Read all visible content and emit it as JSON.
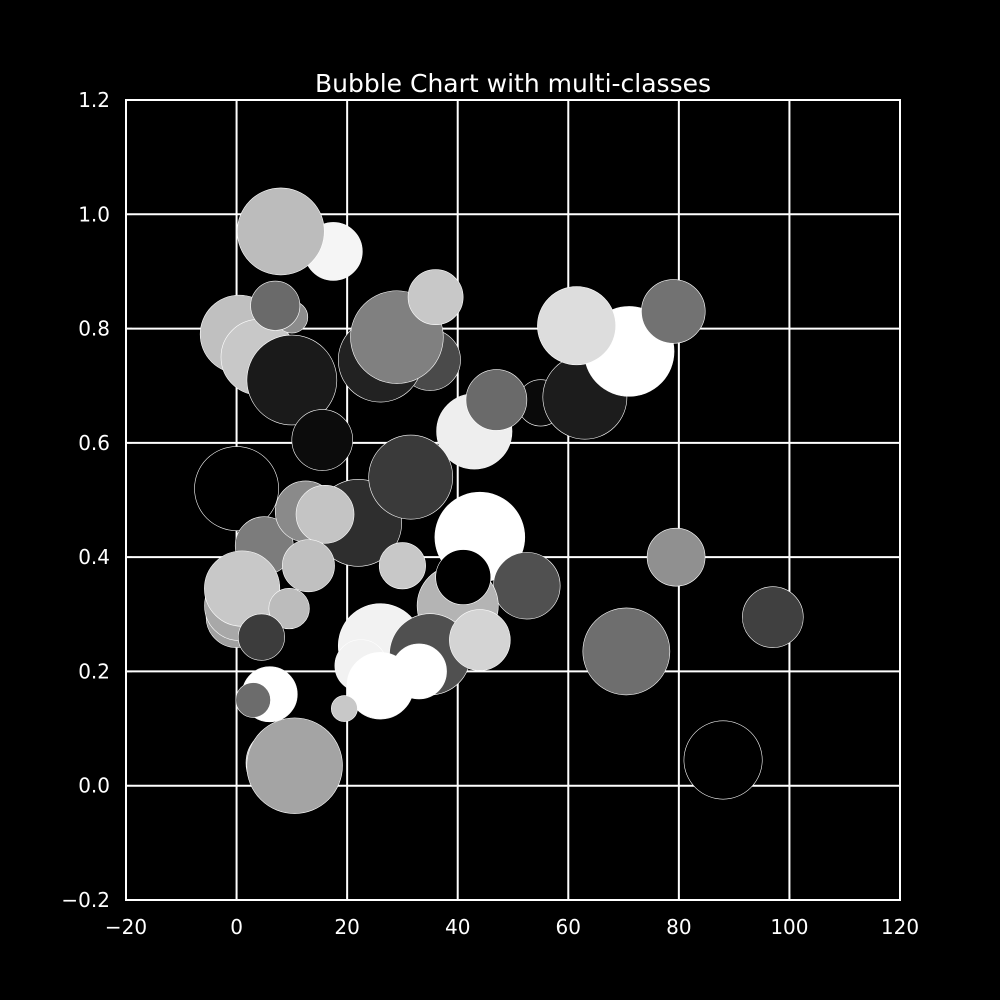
{
  "chart_data": {
    "type": "scatter",
    "subtype": "bubble",
    "title": "Bubble Chart with multi-classes",
    "xlabel": "",
    "ylabel": "",
    "xlim": [
      -20,
      120
    ],
    "ylim": [
      -0.2,
      1.2
    ],
    "xticks": [
      -20,
      0,
      20,
      40,
      60,
      80,
      100,
      120
    ],
    "yticks": [
      -0.2,
      0.0,
      0.2,
      0.4,
      0.6,
      0.8,
      1.0,
      1.2
    ],
    "xtick_labels": [
      "−20",
      "0",
      "20",
      "40",
      "60",
      "80",
      "100",
      "120"
    ],
    "ytick_labels": [
      "−0.2",
      "0.0",
      "0.2",
      "0.4",
      "0.6",
      "0.8",
      "1.0",
      "1.2"
    ],
    "grid": true,
    "colors": {
      "background": "#000000",
      "axes": "#ffffff",
      "grid": "#ffffff",
      "text": "#ffffff",
      "bubble_edge": "#ffffff"
    },
    "points": [
      {
        "x": 0.5,
        "y": 0.79,
        "size": 2.7,
        "color": "#c0c0c0"
      },
      {
        "x": 4,
        "y": 0.75,
        "size": 2.6,
        "color": "#c8c8c8"
      },
      {
        "x": 10,
        "y": 0.82,
        "size": 1.1,
        "color": "#8c8c8c"
      },
      {
        "x": 9,
        "y": 0.96,
        "size": 2.4,
        "color": "#9a9a9a"
      },
      {
        "x": 17.5,
        "y": 0.935,
        "size": 2.0,
        "color": "#f5f5f5"
      },
      {
        "x": 8,
        "y": 0.97,
        "size": 3.0,
        "color": "#bcbcbc"
      },
      {
        "x": 7,
        "y": 0.84,
        "size": 1.7,
        "color": "#6a6a6a"
      },
      {
        "x": 6.5,
        "y": 0.71,
        "size": 1.6,
        "color": "#f0f0f0"
      },
      {
        "x": 10,
        "y": 0.71,
        "size": 3.1,
        "color": "#1a1a1a"
      },
      {
        "x": 35,
        "y": 0.745,
        "size": 2.1,
        "color": "#4a4a4a"
      },
      {
        "x": 26,
        "y": 0.745,
        "size": 2.9,
        "color": "#222222"
      },
      {
        "x": 29,
        "y": 0.785,
        "size": 3.2,
        "color": "#808080"
      },
      {
        "x": 36,
        "y": 0.855,
        "size": 1.9,
        "color": "#c8c8c8"
      },
      {
        "x": 15.5,
        "y": 0.605,
        "size": 2.1,
        "color": "#0c0c0c"
      },
      {
        "x": 43,
        "y": 0.62,
        "size": 2.6,
        "color": "#eeeeee"
      },
      {
        "x": 55,
        "y": 0.67,
        "size": 1.6,
        "color": "#0a0a0a"
      },
      {
        "x": 47,
        "y": 0.675,
        "size": 2.1,
        "color": "#6a6a6a"
      },
      {
        "x": 63,
        "y": 0.68,
        "size": 2.9,
        "color": "#1c1c1c"
      },
      {
        "x": 71,
        "y": 0.76,
        "size": 3.1,
        "color": "#ffffff"
      },
      {
        "x": 61.5,
        "y": 0.805,
        "size": 2.7,
        "color": "#dddddd"
      },
      {
        "x": 79,
        "y": 0.83,
        "size": 2.2,
        "color": "#727272"
      },
      {
        "x": 0,
        "y": 0.52,
        "size": 2.9,
        "color": "#000000"
      },
      {
        "x": 5,
        "y": 0.42,
        "size": 2.0,
        "color": "#7c7c7c"
      },
      {
        "x": 12.5,
        "y": 0.48,
        "size": 2.1,
        "color": "#8a8a8a"
      },
      {
        "x": 22,
        "y": 0.46,
        "size": 3.0,
        "color": "#2e2e2e"
      },
      {
        "x": 31.5,
        "y": 0.54,
        "size": 2.9,
        "color": "#3a3a3a"
      },
      {
        "x": 16,
        "y": 0.475,
        "size": 2.0,
        "color": "#c4c4c4"
      },
      {
        "x": 13,
        "y": 0.385,
        "size": 1.8,
        "color": "#c0c0c0"
      },
      {
        "x": 30,
        "y": 0.385,
        "size": 1.6,
        "color": "#c8c8c8"
      },
      {
        "x": 44,
        "y": 0.435,
        "size": 3.1,
        "color": "#ffffff"
      },
      {
        "x": 52.5,
        "y": 0.35,
        "size": 2.3,
        "color": "#505050"
      },
      {
        "x": 79.5,
        "y": 0.4,
        "size": 2.0,
        "color": "#909090"
      },
      {
        "x": 97,
        "y": 0.295,
        "size": 2.1,
        "color": "#404040"
      },
      {
        "x": 40,
        "y": 0.315,
        "size": 2.8,
        "color": "#b4b4b4"
      },
      {
        "x": 41,
        "y": 0.365,
        "size": 1.9,
        "color": "#000000"
      },
      {
        "x": 0,
        "y": 0.295,
        "size": 2.1,
        "color": "#a0a0a0"
      },
      {
        "x": 0.5,
        "y": 0.315,
        "size": 2.4,
        "color": "#a8a8a8"
      },
      {
        "x": 1,
        "y": 0.345,
        "size": 2.6,
        "color": "#c8c8c8"
      },
      {
        "x": 9.5,
        "y": 0.31,
        "size": 1.4,
        "color": "#bcbcbc"
      },
      {
        "x": 4.5,
        "y": 0.26,
        "size": 1.6,
        "color": "#3c3c3c"
      },
      {
        "x": 26,
        "y": 0.245,
        "size": 2.9,
        "color": "#f2f2f2"
      },
      {
        "x": 35,
        "y": 0.23,
        "size": 2.8,
        "color": "#505050"
      },
      {
        "x": 44,
        "y": 0.255,
        "size": 2.1,
        "color": "#d4d4d4"
      },
      {
        "x": 70.5,
        "y": 0.235,
        "size": 3.0,
        "color": "#6e6e6e"
      },
      {
        "x": 22.5,
        "y": 0.21,
        "size": 1.8,
        "color": "#f2f2f2"
      },
      {
        "x": 26,
        "y": 0.175,
        "size": 2.3,
        "color": "#ffffff"
      },
      {
        "x": 33,
        "y": 0.2,
        "size": 1.9,
        "color": "#ffffff"
      },
      {
        "x": 6,
        "y": 0.16,
        "size": 1.9,
        "color": "#ffffff"
      },
      {
        "x": 3,
        "y": 0.15,
        "size": 1.2,
        "color": "#6c6c6c"
      },
      {
        "x": 19.5,
        "y": 0.135,
        "size": 0.9,
        "color": "#c8c8c8"
      },
      {
        "x": 8,
        "y": 0.04,
        "size": 2.4,
        "color": "#b8b8b8"
      },
      {
        "x": 10.5,
        "y": 0.035,
        "size": 3.3,
        "color": "#a4a4a4"
      },
      {
        "x": 88,
        "y": 0.045,
        "size": 2.7,
        "color": "#000000"
      }
    ]
  }
}
